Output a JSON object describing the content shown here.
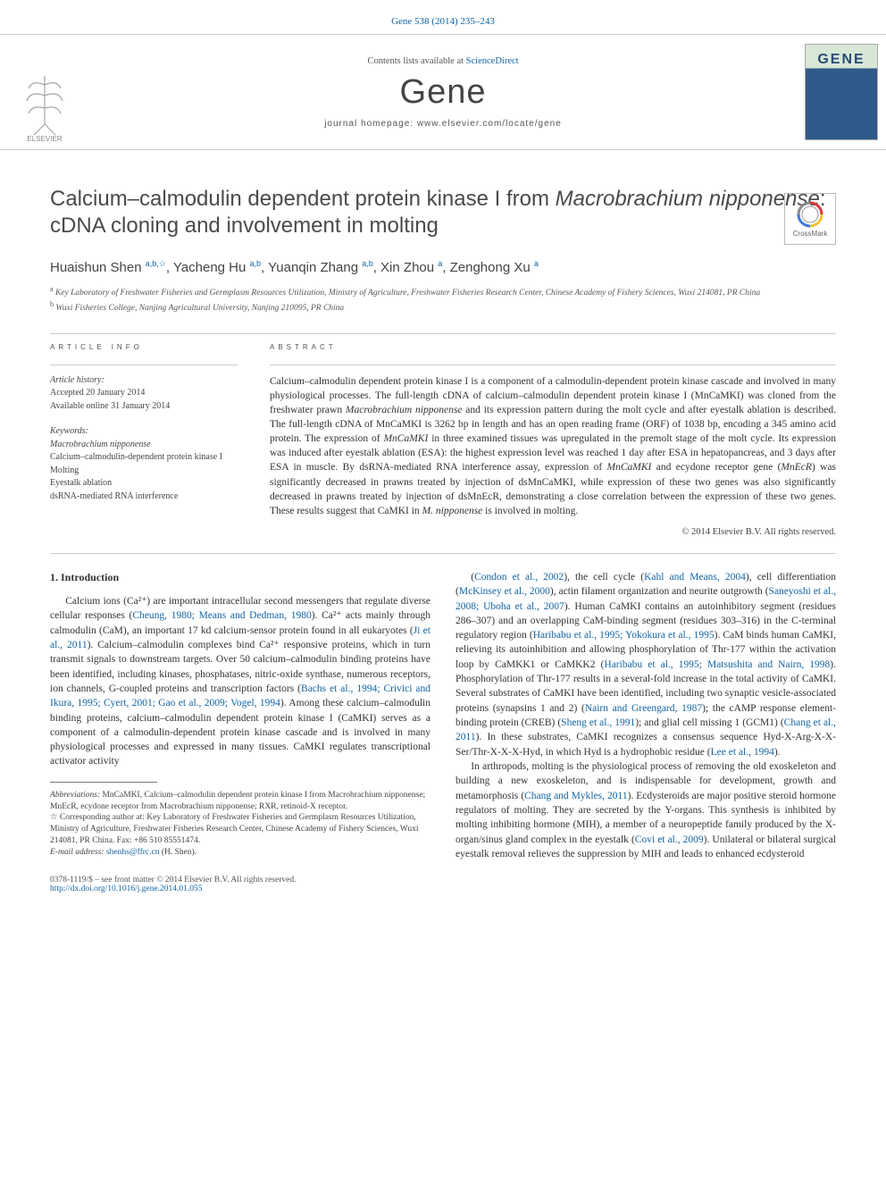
{
  "citation": "Gene 538 (2014) 235–243",
  "masthead": {
    "contents_line_pre": "Contents lists available at ",
    "contents_line_link": "ScienceDirect",
    "journal_name": "Gene",
    "homepage_line": "journal homepage: www.elsevier.com/locate/gene",
    "cover_title": "GENE"
  },
  "crossmark_label": "CrossMark",
  "title_pre": "Calcium–calmodulin dependent protein kinase I from ",
  "title_italic": "Macrobrachium nipponense",
  "title_post": ": cDNA cloning and involvement in molting",
  "authors_html": "Huaishun Shen <sup>a,b,</sup><sup class='star'></sup>, Yacheng Hu <sup>a,b</sup>, Yuanqin Zhang <sup>a,b</sup>, Xin Zhou <sup>a</sup>, Zenghong Xu <sup>a</sup>",
  "affil_a": "Key Laboratory of Freshwater Fisheries and Germplasm Resources Utilization, Ministry of Agriculture, Freshwater Fisheries Research Center, Chinese Academy of Fishery Sciences, Wuxi 214081, PR China",
  "affil_b": "Wuxi Fisheries College, Nanjing Agricultural University, Nanjing 210095, PR China",
  "article_info_label": "ARTICLE INFO",
  "abstract_label": "ABSTRACT",
  "history": {
    "label": "Article history:",
    "accepted": "Accepted 20 January 2014",
    "online": "Available online 31 January 2014"
  },
  "keywords": {
    "label": "Keywords:",
    "items": [
      "Macrobrachium nipponense",
      "Calcium–calmodulin-dependent protein kinase I",
      "Molting",
      "Eyestalk ablation",
      "dsRNA-mediated RNA interference"
    ]
  },
  "abstract_text": "Calcium–calmodulin dependent protein kinase I is a component of a calmodulin-dependent protein kinase cascade and involved in many physiological processes. The full-length cDNA of calcium–calmodulin dependent protein kinase I (MnCaMKI) was cloned from the freshwater prawn <span class='italic'>Macrobrachium nipponense</span> and its expression pattern during the molt cycle and after eyestalk ablation is described. The full-length cDNA of MnCaMKI is 3262 bp in length and has an open reading frame (ORF) of 1038 bp, encoding a 345 amino acid protein. The expression of <span class='italic'>MnCaMKI</span> in three examined tissues was upregulated in the premolt stage of the molt cycle. Its expression was induced after eyestalk ablation (ESA): the highest expression level was reached 1 day after ESA in hepatopancreas, and 3 days after ESA in muscle. By dsRNA-mediated RNA interference assay, expression of <span class='italic'>MnCaMKI</span> and ecydone receptor gene (<span class='italic'>MnEcR</span>) was significantly decreased in prawns treated by injection of dsMnCaMKI, while expression of these two genes was also significantly decreased in prawns treated by injection of dsMnEcR, demonstrating a close correlation between the expression of these two genes. These results suggest that CaMKI in <span class='italic'>M. nipponense</span> is involved in molting.",
  "copyright": "© 2014 Elsevier B.V. All rights reserved.",
  "section_1_heading": "1. Introduction",
  "col1_p1": "Calcium ions (Ca²⁺) are important intracellular second messengers that regulate diverse cellular responses (<span class='link'>Cheung, 1980; Means and Dedman, 1980</span>). Ca²⁺ acts mainly through calmodulin (CaM), an important 17 kd calcium-sensor protein found in all eukaryotes (<span class='link'>Ji et al., 2011</span>). Calcium–calmodulin complexes bind Ca²⁺ responsive proteins, which in turn transmit signals to downstream targets. Over 50 calcium–calmodulin binding proteins have been identified, including kinases, phosphatases, nitric-oxide synthase, numerous receptors, ion channels, G-coupled proteins and transcription factors (<span class='link'>Bachs et al., 1994; Crivici and Ikura, 1995; Cyert, 2001; Gao et al., 2009; Vogel, 1994</span>). Among these calcium–calmodulin binding proteins, calcium–calmodulin dependent protein kinase I (CaMKI) serves as a component of a calmodulin-dependent protein kinase cascade and is involved in many physiological processes and expressed in many tissues. CaMKI regulates transcriptional activator activity",
  "col2_p1": "(<span class='link'>Condon et al., 2002</span>), the cell cycle (<span class='link'>Kahl and Means, 2004</span>), cell differentiation (<span class='link'>McKinsey et al., 2000</span>), actin filament organization and neurite outgrowth (<span class='link'>Saneyoshi et al., 2008; Uboha et al., 2007</span>). Human CaMKI contains an autoinhibitory segment (residues 286–307) and an overlapping CaM-binding segment (residues 303–316) in the C-terminal regulatory region (<span class='link'>Haribabu et al., 1995; Yokokura et al., 1995</span>). CaM binds human CaMKI, relieving its autoinhibition and allowing phosphorylation of Thr-177 within the activation loop by CaMKK1 or CaMKK2 (<span class='link'>Haribabu et al., 1995; Matsushita and Nairn, 1998</span>). Phosphorylation of Thr-177 results in a several-fold increase in the total activity of CaMKI. Several substrates of CaMKI have been identified, including two synaptic vesicle-associated proteins (synapsins 1 and 2) (<span class='link'>Nairn and Greengard, 1987</span>); the cAMP response element-binding protein (CREB) (<span class='link'>Sheng et al., 1991</span>); and glial cell missing 1 (GCM1) (<span class='link'>Chang et al., 2011</span>). In these substrates, CaMKI recognizes a consensus sequence Hyd-X-Arg-X-X-Ser/Thr-X-X-X-Hyd, in which Hyd is a hydrophobic residue (<span class='link'>Lee et al., 1994</span>).",
  "col2_p2": "In arthropods, molting is the physiological process of removing the old exoskeleton and building a new exoskeleton, and is indispensable for development, growth and metamorphosis (<span class='link'>Chang and Mykles, 2011</span>). Ecdysteroids are major positive steroid hormone regulators of molting. They are secreted by the Y-organs. This synthesis is inhibited by molting inhibiting hormone (MIH), a member of a neuropeptide family produced by the X-organ/sinus gland complex in the eyestalk (<span class='link'>Covi et al., 2009</span>). Unilateral or bilateral surgical eyestalk removal relieves the suppression by MIH and leads to enhanced ecdysteroid",
  "footnotes": {
    "abbr_label": "Abbreviations:",
    "abbr_text": " MnCaMKI, Calcium–calmodulin dependent protein kinase I from Macrobrachium nipponense; MnEcR, ecydone receptor from Macrobrachium nipponense; RXR, retinoid-X receptor.",
    "corr_text": " Corresponding author at: Key Laboratory of Freshwater Fisheries and Germplasm Resources Utilization, Ministry of Agriculture, Freshwater Fisheries Research Center, Chinese Academy of Fishery Sciences, Wuxi 214081, PR China. Fax: +86 510 85551474.",
    "email_label": "E-mail address:",
    "email_value": "shenhs@ffrc.cn",
    "email_suffix": " (H. Shen)."
  },
  "footer": {
    "line1": "0378-1119/$ – see front matter © 2014 Elsevier B.V. All rights reserved.",
    "doi": "http://dx.doi.org/10.1016/j.gene.2014.01.055"
  }
}
